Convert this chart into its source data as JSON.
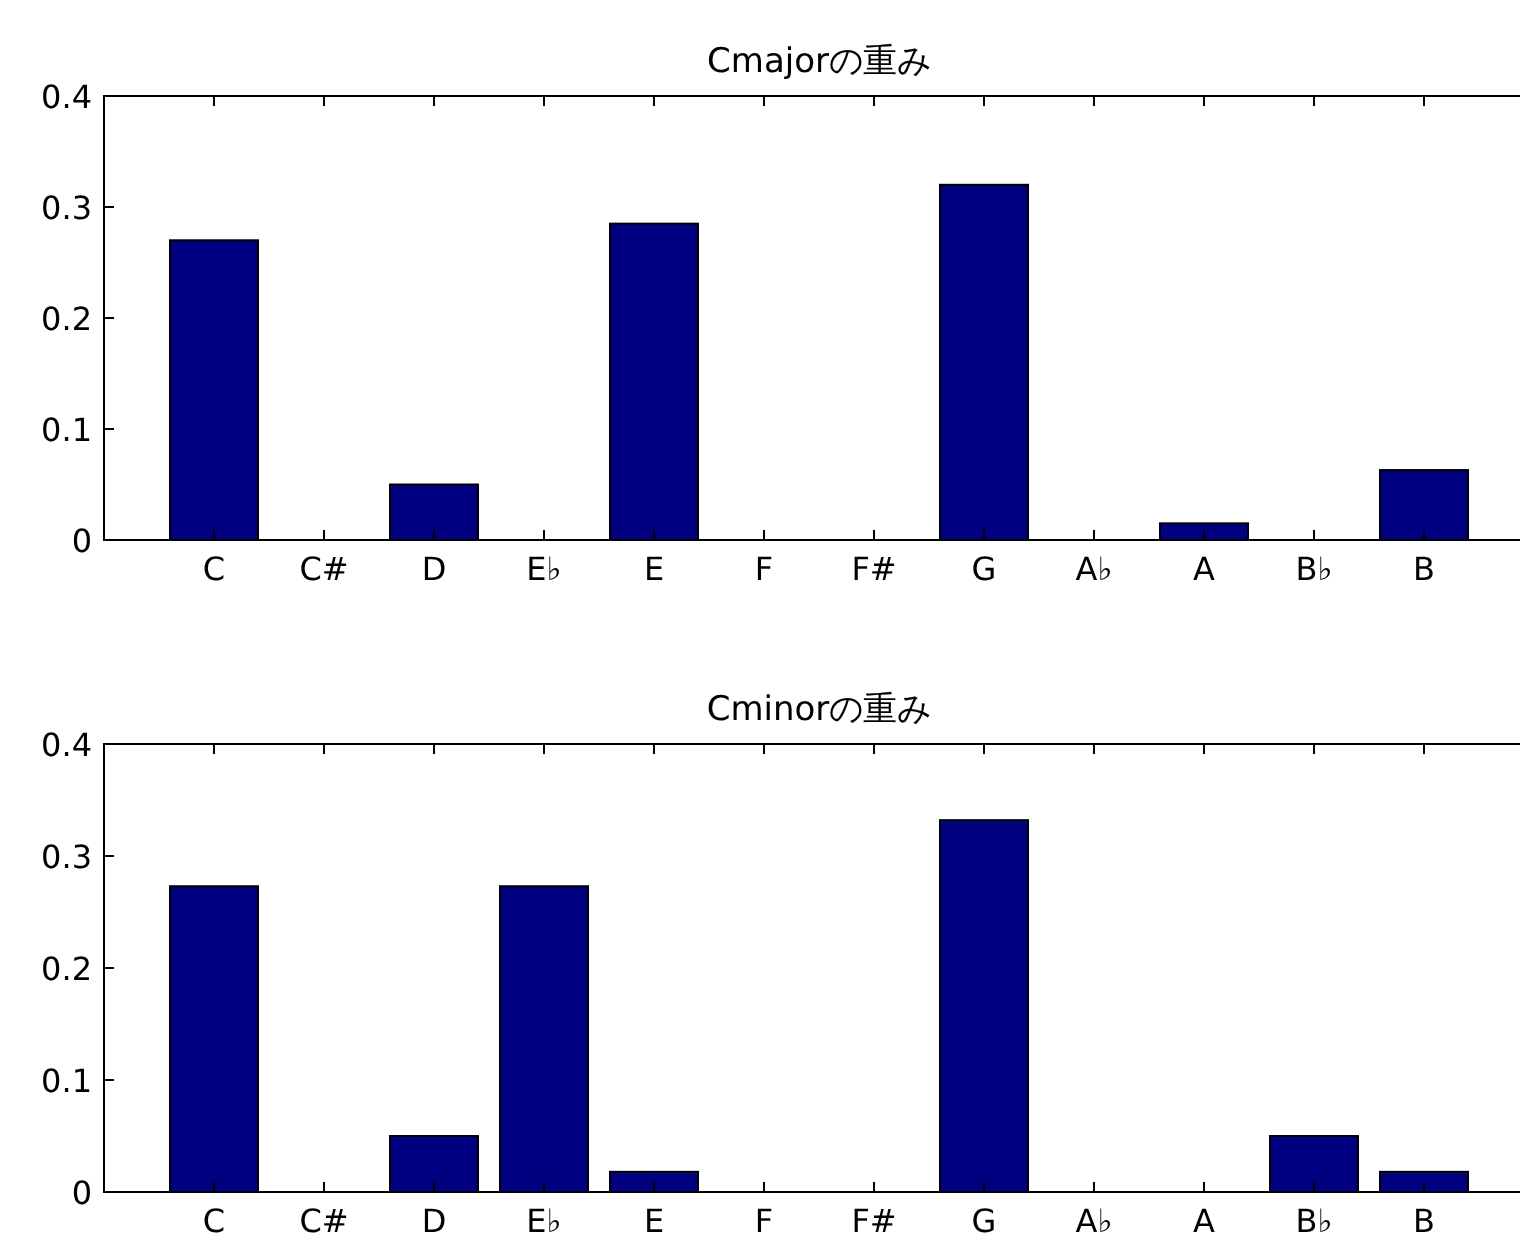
{
  "chart_data": [
    {
      "type": "bar",
      "title": "Cmajorの重み",
      "categories": [
        "C",
        "C#",
        "D",
        "E♭",
        "E",
        "F",
        "F#",
        "G",
        "A♭",
        "A",
        "B♭",
        "B"
      ],
      "values": [
        0.27,
        0,
        0.05,
        0,
        0.285,
        0,
        0,
        0.32,
        0,
        0.015,
        0,
        0.063
      ],
      "color": "#000080",
      "ylim": [
        0,
        0.4
      ],
      "yticks": [
        0,
        0.1,
        0.2,
        0.3,
        0.4
      ]
    },
    {
      "type": "bar",
      "title": "Cminorの重み",
      "categories": [
        "C",
        "C#",
        "D",
        "E♭",
        "E",
        "F",
        "F#",
        "G",
        "A♭",
        "A",
        "B♭",
        "B"
      ],
      "values": [
        0.273,
        0,
        0.05,
        0.273,
        0.018,
        0,
        0,
        0.332,
        0,
        0,
        0.05,
        0.018
      ],
      "color": "#000080",
      "ylim": [
        0,
        0.4
      ],
      "yticks": [
        0,
        0.1,
        0.2,
        0.3,
        0.4
      ]
    }
  ]
}
